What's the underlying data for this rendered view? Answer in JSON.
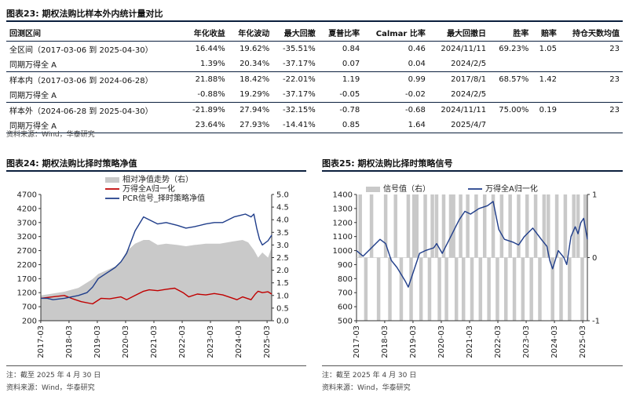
{
  "table_section": {
    "title": "图表23:  期权法购比样本外内统计量对比",
    "headers": [
      "回测区间",
      "年化收益",
      "年化波动",
      "最大回撤",
      "夏普比率",
      "Calmar 比率",
      "最大回撤日",
      "胜率",
      "赔率",
      "持仓天数均值"
    ],
    "rows": [
      [
        "全区间（2017-03-06 到 2025-04-30）",
        "16.44%",
        "19.62%",
        "-35.51%",
        "0.84",
        "0.46",
        "2024/11/11",
        "69.23%",
        "1.05",
        "23"
      ],
      [
        "同期万得全 A",
        "1.39%",
        "20.34%",
        "-37.17%",
        "0.07",
        "0.04",
        "2024/2/5",
        "",
        "",
        ""
      ],
      [
        "样本内（2017-03-06 到 2024-06-28）",
        "21.88%",
        "18.42%",
        "-22.01%",
        "1.19",
        "0.99",
        "2017/8/1",
        "68.57%",
        "1.42",
        "23"
      ],
      [
        "同期万得全 A",
        "-0.88%",
        "19.29%",
        "-37.17%",
        "-0.05",
        "-0.02",
        "2024/2/5",
        "",
        "",
        ""
      ],
      [
        "样本外（2024-06-28 到 2025-04-30）",
        "-21.89%",
        "27.94%",
        "-32.15%",
        "-0.78",
        "-0.68",
        "2024/11/11",
        "75.00%",
        "0.19",
        "23"
      ],
      [
        "同期万得全 A",
        "23.64%",
        "27.93%",
        "-14.41%",
        "0.85",
        "1.64",
        "2025/4/7",
        "",
        "",
        ""
      ]
    ],
    "source": "资料来源：Wind，华泰研究"
  },
  "left_figure": {
    "title": "图表24:  期权法购比择时策略净值",
    "note": "注：截至 2025 年 4 月 30 日",
    "source": "资料来源：Wind，华泰研究"
  },
  "right_figure": {
    "title": "图表25:  期权法购比择时策略信号",
    "note": "注：截至 2025 年 4 月 30 日",
    "source": "资料来源：Wind，华泰研究"
  },
  "colors": {
    "navy": "#1f3d8a",
    "red": "#c00000",
    "gray": "#c9c9c9",
    "title_rule": "#0b1f3d"
  },
  "chart_data": [
    {
      "type": "line",
      "title": "期权法购比择时策略净值",
      "x_ticks": [
        "2017-03",
        "2018-03",
        "2019-03",
        "2020-03",
        "2021-03",
        "2022-03",
        "2023-03",
        "2024-03",
        "2025-03"
      ],
      "x_range": [
        2017.17,
        2025.33
      ],
      "y_left": {
        "range": [
          200,
          4700
        ],
        "ticks": [
          200,
          700,
          1200,
          1700,
          2200,
          2700,
          3200,
          3700,
          4200,
          4700
        ]
      },
      "y_right": {
        "range": [
          0,
          5
        ],
        "ticks": [
          "0.0",
          "0.5",
          "1.0",
          "1.5",
          "2.0",
          "2.5",
          "3.0",
          "3.5",
          "4.0",
          "4.5",
          "5.0"
        ]
      },
      "series": [
        {
          "name": "相对净值走势（右）",
          "type": "area",
          "axis": "right",
          "x": [
            2017.17,
            2017.5,
            2018.0,
            2018.5,
            2019.0,
            2019.2,
            2019.5,
            2019.8,
            2020.0,
            2020.2,
            2020.5,
            2020.8,
            2021.0,
            2021.3,
            2021.6,
            2022.0,
            2022.3,
            2022.6,
            2023.0,
            2023.5,
            2024.0,
            2024.3,
            2024.5,
            2024.7,
            2024.85,
            2025.0,
            2025.2,
            2025.33
          ],
          "values": [
            1.0,
            1.06,
            1.15,
            1.3,
            1.65,
            1.85,
            2.0,
            2.15,
            2.35,
            2.75,
            3.05,
            3.2,
            3.2,
            3.0,
            3.05,
            3.0,
            2.95,
            3.0,
            3.05,
            3.05,
            3.15,
            3.2,
            3.1,
            2.8,
            2.5,
            2.7,
            2.5,
            2.9
          ]
        },
        {
          "name": "万得全A归一化",
          "type": "line",
          "axis": "left",
          "x": [
            2017.17,
            2017.5,
            2018.0,
            2018.3,
            2018.6,
            2019.0,
            2019.3,
            2019.6,
            2020.0,
            2020.2,
            2020.5,
            2020.8,
            2021.0,
            2021.3,
            2021.6,
            2021.9,
            2022.2,
            2022.4,
            2022.7,
            2023.0,
            2023.3,
            2023.6,
            2023.9,
            2024.1,
            2024.3,
            2024.6,
            2024.75,
            2024.85,
            2025.0,
            2025.2,
            2025.33
          ],
          "values": [
            1000,
            1040,
            1100,
            980,
            880,
            800,
            1000,
            980,
            1050,
            950,
            1100,
            1250,
            1300,
            1270,
            1320,
            1360,
            1200,
            1050,
            1150,
            1120,
            1170,
            1120,
            1020,
            950,
            1050,
            950,
            1150,
            1250,
            1200,
            1230,
            1150
          ]
        },
        {
          "name": "PCR信号_择时策略净值",
          "type": "line",
          "axis": "left",
          "x": [
            2017.17,
            2017.4,
            2017.6,
            2018.0,
            2018.5,
            2018.8,
            2019.0,
            2019.2,
            2019.5,
            2019.8,
            2020.0,
            2020.2,
            2020.5,
            2020.8,
            2021.0,
            2021.3,
            2021.6,
            2022.0,
            2022.3,
            2022.6,
            2023.0,
            2023.3,
            2023.6,
            2024.0,
            2024.2,
            2024.4,
            2024.6,
            2024.7,
            2024.8,
            2024.9,
            2025.0,
            2025.2,
            2025.33
          ],
          "values": [
            1000,
            1000,
            950,
            1000,
            1100,
            1200,
            1400,
            1700,
            1900,
            2100,
            2300,
            2600,
            3400,
            3900,
            3800,
            3650,
            3700,
            3600,
            3500,
            3550,
            3650,
            3700,
            3700,
            3900,
            3950,
            4000,
            3900,
            4000,
            3500,
            3100,
            2900,
            3050,
            3250
          ]
        }
      ]
    },
    {
      "type": "line",
      "title": "期权法购比择时策略信号",
      "x_ticks": [
        "2017-03",
        "2018-03",
        "2019-03",
        "2020-03",
        "2021-03",
        "2022-03",
        "2023-03",
        "2024-03",
        "2025-03"
      ],
      "x_range": [
        2017.17,
        2025.33
      ],
      "y_left": {
        "range": [
          500,
          1400
        ],
        "ticks": [
          500,
          600,
          700,
          800,
          900,
          1000,
          1100,
          1200,
          1300,
          1400
        ]
      },
      "y_right": {
        "range": [
          -1,
          1
        ],
        "ticks": [
          "-1",
          "0",
          "1"
        ]
      },
      "series": [
        {
          "name": "信号值（右）",
          "type": "bar",
          "axis": "right",
          "x": [
            2017.3,
            2017.5,
            2017.7,
            2017.95,
            2018.2,
            2018.35,
            2018.55,
            2018.75,
            2019.0,
            2019.1,
            2019.2,
            2019.3,
            2019.45,
            2019.6,
            2019.75,
            2019.85,
            2020.0,
            2020.1,
            2020.25,
            2020.35,
            2020.5,
            2020.6,
            2020.7,
            2020.85,
            2020.95,
            2021.1,
            2021.25,
            2021.4,
            2021.55,
            2021.7,
            2021.85,
            2022.0,
            2022.15,
            2022.3,
            2022.45,
            2022.6,
            2022.75,
            2022.9,
            2023.05,
            2023.2,
            2023.35,
            2023.5,
            2023.65,
            2023.8,
            2023.95,
            2024.1,
            2024.25,
            2024.4,
            2024.55,
            2024.7,
            2024.85,
            2025.0,
            2025.15,
            2025.25
          ],
          "values": [
            1,
            -1,
            1,
            -1,
            1,
            -1,
            1,
            -1,
            1,
            -1,
            1,
            1,
            -1,
            1,
            -1,
            1,
            1,
            -1,
            1,
            -1,
            1,
            1,
            -1,
            1,
            -1,
            1,
            -1,
            1,
            -1,
            1,
            -1,
            1,
            -1,
            1,
            -1,
            1,
            -1,
            1,
            -1,
            1,
            -1,
            1,
            -1,
            1,
            1,
            -1,
            1,
            -1,
            1,
            -1,
            1,
            1,
            -1,
            1
          ]
        },
        {
          "name": "万得全A归一化",
          "type": "line",
          "axis": "left",
          "x": [
            2017.17,
            2017.4,
            2017.7,
            2018.0,
            2018.2,
            2018.4,
            2018.6,
            2018.9,
            2019.0,
            2019.2,
            2019.4,
            2019.6,
            2019.9,
            2020.0,
            2020.2,
            2020.5,
            2020.8,
            2021.0,
            2021.2,
            2021.5,
            2021.8,
            2022.0,
            2022.2,
            2022.4,
            2022.7,
            2022.9,
            2023.1,
            2023.4,
            2023.7,
            2023.9,
            2024.0,
            2024.1,
            2024.3,
            2024.5,
            2024.6,
            2024.75,
            2024.9,
            2025.0,
            2025.1,
            2025.2,
            2025.33
          ],
          "values": [
            1000,
            960,
            1020,
            1080,
            1050,
            930,
            880,
            780,
            740,
            860,
            980,
            1000,
            1020,
            1050,
            980,
            1100,
            1220,
            1280,
            1260,
            1300,
            1320,
            1350,
            1150,
            1080,
            1060,
            1040,
            1100,
            1160,
            1080,
            1030,
            930,
            870,
            1000,
            950,
            900,
            1100,
            1170,
            1120,
            1200,
            1230,
            1080
          ]
        }
      ]
    }
  ]
}
